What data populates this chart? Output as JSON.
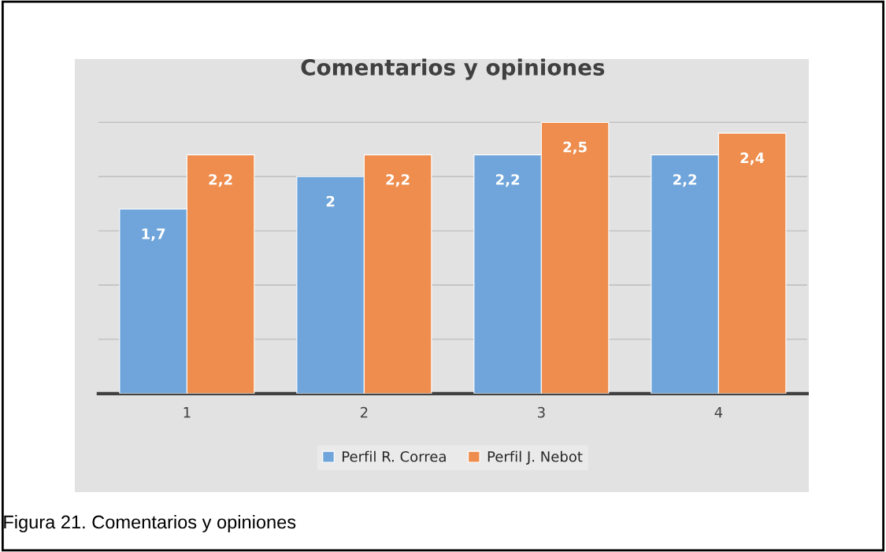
{
  "chart_data": {
    "type": "bar",
    "title": "Comentarios y opiniones",
    "categories": [
      "1",
      "2",
      "3",
      "4"
    ],
    "series": [
      {
        "name": "Perfil R. Correa",
        "color": "#6fa5da",
        "values": [
          1.7,
          2,
          2.2,
          2.2
        ],
        "value_labels": [
          "1,7",
          "2",
          "2,2",
          "2,2"
        ]
      },
      {
        "name": "Perfil J. Nebot",
        "color": "#ee8d4d",
        "values": [
          2.2,
          2.2,
          2.5,
          2.4
        ],
        "value_labels": [
          "2,2",
          "2,2",
          "2,5",
          "2,4"
        ]
      }
    ],
    "grid": "y",
    "legend": "bottom",
    "tick_labels": "x",
    "annotations": [
      "Figura 21. Comentarios y opiniones"
    ]
  }
}
